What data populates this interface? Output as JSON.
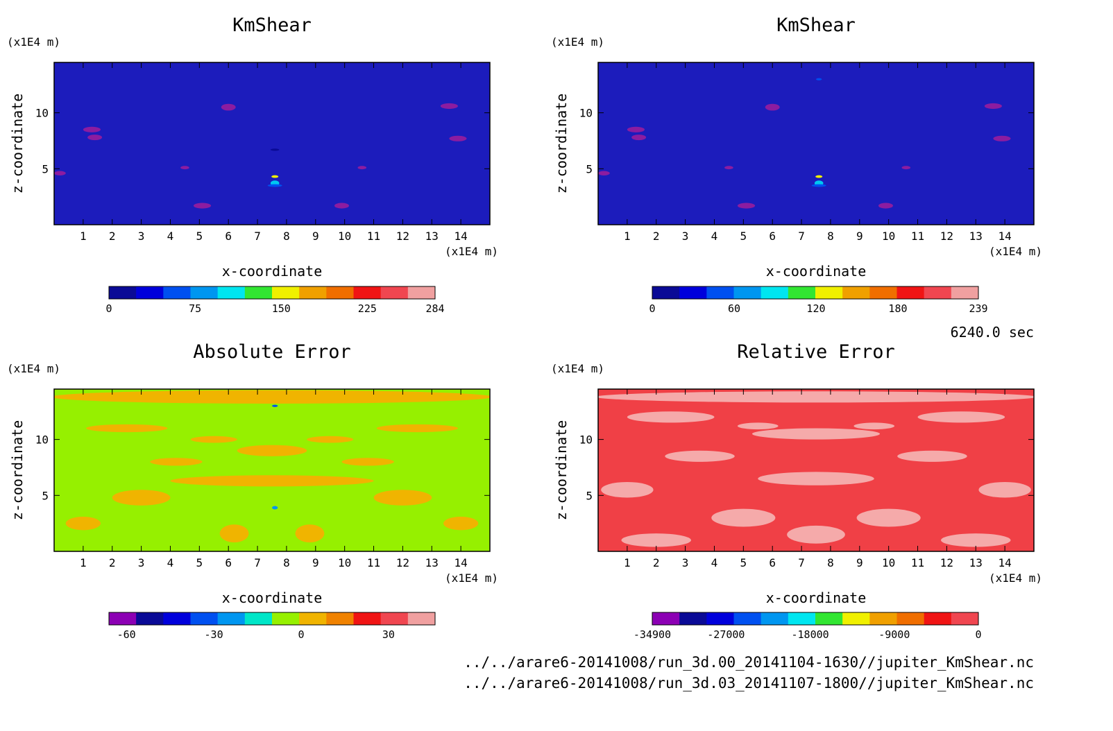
{
  "time_label": "6240.0 sec",
  "footer": {
    "line1": "../../arare6-20141008/run_3d.00_20141104-1630//jupiter_KmShear.nc",
    "line2": "../../arare6-20141008/run_3d.03_20141107-1800//jupiter_KmShear.nc"
  },
  "chart_data": [
    {
      "type": "heatmap",
      "title": "KmShear",
      "xlabel": "x-coordinate",
      "ylabel": "z-coordinate",
      "x_unit": "(x1E4 m)",
      "y_unit": "(x1E4 m)",
      "xlim": [
        0,
        15
      ],
      "ylim": [
        0,
        14.5
      ],
      "xticks": [
        1,
        2,
        3,
        4,
        5,
        6,
        7,
        8,
        9,
        10,
        11,
        12,
        13,
        14
      ],
      "yticks": [
        5,
        10
      ],
      "background_color": "#1c1cbc",
      "colorbar": {
        "range": [
          0,
          284
        ],
        "labels": [
          {
            "value": 0,
            "text": "0"
          },
          {
            "value": 75,
            "text": "75"
          },
          {
            "value": 150,
            "text": "150"
          },
          {
            "value": 225,
            "text": "225"
          },
          {
            "value": 284,
            "text": "284"
          }
        ],
        "colors": [
          "#0a0a96",
          "#0000dc",
          "#0050f0",
          "#0096f0",
          "#00e6f0",
          "#32e632",
          "#f0f000",
          "#f0a000",
          "#f06e00",
          "#f01414",
          "#f04650",
          "#f0a0a0"
        ]
      },
      "blobs": [
        {
          "x": 6.0,
          "z": 10.5,
          "rx": 0.25,
          "rz": 0.3,
          "c": "#8c1ca0"
        },
        {
          "x": 1.3,
          "z": 8.5,
          "rx": 0.3,
          "rz": 0.25,
          "c": "#8c1ca0"
        },
        {
          "x": 1.4,
          "z": 7.8,
          "rx": 0.25,
          "rz": 0.25,
          "c": "#8c1ca0"
        },
        {
          "x": 0.2,
          "z": 4.6,
          "rx": 0.2,
          "rz": 0.2,
          "c": "#8c1ca0"
        },
        {
          "x": 5.1,
          "z": 1.7,
          "rx": 0.3,
          "rz": 0.25,
          "c": "#8c1ca0"
        },
        {
          "x": 9.9,
          "z": 1.7,
          "rx": 0.25,
          "rz": 0.25,
          "c": "#8c1ca0"
        },
        {
          "x": 13.6,
          "z": 10.6,
          "rx": 0.3,
          "rz": 0.25,
          "c": "#8c1ca0"
        },
        {
          "x": 13.9,
          "z": 7.7,
          "rx": 0.3,
          "rz": 0.25,
          "c": "#8c1ca0"
        },
        {
          "x": 4.5,
          "z": 5.1,
          "rx": 0.15,
          "rz": 0.15,
          "c": "#8c1ca0"
        },
        {
          "x": 10.6,
          "z": 5.1,
          "rx": 0.15,
          "rz": 0.15,
          "c": "#8c1ca0"
        },
        {
          "x": 7.6,
          "z": 3.7,
          "rx": 0.15,
          "rz": 0.25,
          "c": "#00c8f0"
        },
        {
          "x": 7.6,
          "z": 4.3,
          "rx": 0.12,
          "rz": 0.12,
          "c": "#f0f000"
        },
        {
          "x": 7.6,
          "z": 3.5,
          "rx": 0.25,
          "rz": 0.12,
          "c": "#0050f0"
        },
        {
          "x": 7.6,
          "z": 6.7,
          "rx": 0.15,
          "rz": 0.1,
          "c": "#0a0a96"
        }
      ]
    },
    {
      "type": "heatmap",
      "title": "KmShear",
      "xlabel": "x-coordinate",
      "ylabel": "z-coordinate",
      "x_unit": "(x1E4 m)",
      "y_unit": "(x1E4 m)",
      "xlim": [
        0,
        15
      ],
      "ylim": [
        0,
        14.5
      ],
      "xticks": [
        1,
        2,
        3,
        4,
        5,
        6,
        7,
        8,
        9,
        10,
        11,
        12,
        13,
        14
      ],
      "yticks": [
        5,
        10
      ],
      "background_color": "#1c1cbc",
      "colorbar": {
        "range": [
          0,
          239
        ],
        "labels": [
          {
            "value": 0,
            "text": "0"
          },
          {
            "value": 60,
            "text": "60"
          },
          {
            "value": 120,
            "text": "120"
          },
          {
            "value": 180,
            "text": "180"
          },
          {
            "value": 239,
            "text": "239"
          }
        ],
        "colors": [
          "#0a0a96",
          "#0000dc",
          "#0050f0",
          "#0096f0",
          "#00e6f0",
          "#32e632",
          "#f0f000",
          "#f0a000",
          "#f06e00",
          "#f01414",
          "#f04650",
          "#f0a0a0"
        ]
      },
      "blobs": [
        {
          "x": 6.0,
          "z": 10.5,
          "rx": 0.25,
          "rz": 0.3,
          "c": "#8c1ca0"
        },
        {
          "x": 1.3,
          "z": 8.5,
          "rx": 0.3,
          "rz": 0.25,
          "c": "#8c1ca0"
        },
        {
          "x": 1.4,
          "z": 7.8,
          "rx": 0.25,
          "rz": 0.25,
          "c": "#8c1ca0"
        },
        {
          "x": 0.2,
          "z": 4.6,
          "rx": 0.2,
          "rz": 0.2,
          "c": "#8c1ca0"
        },
        {
          "x": 5.1,
          "z": 1.7,
          "rx": 0.3,
          "rz": 0.25,
          "c": "#8c1ca0"
        },
        {
          "x": 9.9,
          "z": 1.7,
          "rx": 0.25,
          "rz": 0.25,
          "c": "#8c1ca0"
        },
        {
          "x": 13.6,
          "z": 10.6,
          "rx": 0.3,
          "rz": 0.25,
          "c": "#8c1ca0"
        },
        {
          "x": 13.9,
          "z": 7.7,
          "rx": 0.3,
          "rz": 0.25,
          "c": "#8c1ca0"
        },
        {
          "x": 4.5,
          "z": 5.1,
          "rx": 0.15,
          "rz": 0.15,
          "c": "#8c1ca0"
        },
        {
          "x": 10.6,
          "z": 5.1,
          "rx": 0.15,
          "rz": 0.15,
          "c": "#8c1ca0"
        },
        {
          "x": 7.6,
          "z": 3.7,
          "rx": 0.15,
          "rz": 0.25,
          "c": "#00c8f0"
        },
        {
          "x": 7.6,
          "z": 4.3,
          "rx": 0.12,
          "rz": 0.12,
          "c": "#f0f000"
        },
        {
          "x": 7.6,
          "z": 3.5,
          "rx": 0.25,
          "rz": 0.12,
          "c": "#0050f0"
        },
        {
          "x": 7.6,
          "z": 13.0,
          "rx": 0.1,
          "rz": 0.1,
          "c": "#0050f0"
        }
      ]
    },
    {
      "type": "heatmap",
      "title": "Absolute Error",
      "xlabel": "x-coordinate",
      "ylabel": "z-coordinate",
      "x_unit": "(x1E4 m)",
      "y_unit": "(x1E4 m)",
      "xlim": [
        0,
        15
      ],
      "ylim": [
        0,
        14.5
      ],
      "xticks": [
        1,
        2,
        3,
        4,
        5,
        6,
        7,
        8,
        9,
        10,
        11,
        12,
        13,
        14
      ],
      "yticks": [
        5,
        10
      ],
      "background_color": "#96f000",
      "colorbar": {
        "range": [
          -66,
          46
        ],
        "labels": [
          {
            "value": -60,
            "text": "-60"
          },
          {
            "value": -30,
            "text": "-30"
          },
          {
            "value": 0,
            "text": "0"
          },
          {
            "value": 30,
            "text": "30"
          }
        ],
        "colors": [
          "#8c00b4",
          "#0a0a96",
          "#0000dc",
          "#0050f0",
          "#0096f0",
          "#00e6c8",
          "#96f000",
          "#f0b400",
          "#f08200",
          "#f01414",
          "#f04650",
          "#f0a0a0"
        ]
      },
      "blobs": [
        {
          "x": 7.5,
          "z": 13.8,
          "rx": 7.6,
          "rz": 0.6,
          "c": "#f0b400"
        },
        {
          "x": 2.5,
          "z": 11.0,
          "rx": 1.4,
          "rz": 0.35,
          "c": "#f0b400"
        },
        {
          "x": 12.5,
          "z": 11.0,
          "rx": 1.4,
          "rz": 0.35,
          "c": "#f0b400"
        },
        {
          "x": 7.5,
          "z": 9.0,
          "rx": 1.2,
          "rz": 0.5,
          "c": "#f0b400"
        },
        {
          "x": 4.2,
          "z": 8.0,
          "rx": 0.9,
          "rz": 0.35,
          "c": "#f0b400"
        },
        {
          "x": 10.8,
          "z": 8.0,
          "rx": 0.9,
          "rz": 0.35,
          "c": "#f0b400"
        },
        {
          "x": 7.5,
          "z": 6.3,
          "rx": 3.5,
          "rz": 0.5,
          "c": "#f0b400"
        },
        {
          "x": 3.0,
          "z": 4.8,
          "rx": 1.0,
          "rz": 0.7,
          "c": "#f0b400"
        },
        {
          "x": 12.0,
          "z": 4.8,
          "rx": 1.0,
          "rz": 0.7,
          "c": "#f0b400"
        },
        {
          "x": 6.2,
          "z": 1.6,
          "rx": 0.5,
          "rz": 0.8,
          "c": "#f0b400"
        },
        {
          "x": 8.8,
          "z": 1.6,
          "rx": 0.5,
          "rz": 0.8,
          "c": "#f0b400"
        },
        {
          "x": 1.0,
          "z": 2.5,
          "rx": 0.6,
          "rz": 0.6,
          "c": "#f0b400"
        },
        {
          "x": 14.0,
          "z": 2.5,
          "rx": 0.6,
          "rz": 0.6,
          "c": "#f0b400"
        },
        {
          "x": 5.5,
          "z": 10.0,
          "rx": 0.8,
          "rz": 0.3,
          "c": "#f0b400"
        },
        {
          "x": 9.5,
          "z": 10.0,
          "rx": 0.8,
          "rz": 0.3,
          "c": "#f0b400"
        },
        {
          "x": 7.6,
          "z": 13.0,
          "rx": 0.1,
          "rz": 0.1,
          "c": "#0050f0"
        },
        {
          "x": 7.6,
          "z": 3.9,
          "rx": 0.1,
          "rz": 0.15,
          "c": "#0096f0"
        }
      ]
    },
    {
      "type": "heatmap",
      "title": "Relative Error",
      "xlabel": "x-coordinate",
      "ylabel": "z-coordinate",
      "x_unit": "(x1E4 m)",
      "y_unit": "(x1E4 m)",
      "xlim": [
        0,
        15
      ],
      "ylim": [
        0,
        14.5
      ],
      "xticks": [
        1,
        2,
        3,
        4,
        5,
        6,
        7,
        8,
        9,
        10,
        11,
        12,
        13,
        14
      ],
      "yticks": [
        5,
        10
      ],
      "background_color": "#f04046",
      "colorbar": {
        "range": [
          -34900,
          0
        ],
        "labels": [
          {
            "value": -34900,
            "text": "-34900"
          },
          {
            "value": -27000,
            "text": "-27000"
          },
          {
            "value": -18000,
            "text": "-18000"
          },
          {
            "value": -9000,
            "text": "-9000"
          },
          {
            "value": 0,
            "text": "0"
          }
        ],
        "colors": [
          "#8c00b4",
          "#0a0a96",
          "#0000dc",
          "#0050f0",
          "#0096f0",
          "#00e6f0",
          "#32e632",
          "#f0f000",
          "#f0a000",
          "#f06e00",
          "#f01414",
          "#f04650"
        ]
      },
      "blobs": [
        {
          "x": 7.5,
          "z": 13.8,
          "rx": 7.6,
          "rz": 0.5,
          "c": "#f5aaaa"
        },
        {
          "x": 2.5,
          "z": 12.0,
          "rx": 1.5,
          "rz": 0.5,
          "c": "#f5aaaa"
        },
        {
          "x": 12.5,
          "z": 12.0,
          "rx": 1.5,
          "rz": 0.5,
          "c": "#f5aaaa"
        },
        {
          "x": 7.5,
          "z": 10.5,
          "rx": 2.2,
          "rz": 0.5,
          "c": "#f5aaaa"
        },
        {
          "x": 3.5,
          "z": 8.5,
          "rx": 1.2,
          "rz": 0.5,
          "c": "#f5aaaa"
        },
        {
          "x": 11.5,
          "z": 8.5,
          "rx": 1.2,
          "rz": 0.5,
          "c": "#f5aaaa"
        },
        {
          "x": 7.5,
          "z": 6.5,
          "rx": 2.0,
          "rz": 0.6,
          "c": "#f5aaaa"
        },
        {
          "x": 1.0,
          "z": 5.5,
          "rx": 0.9,
          "rz": 0.7,
          "c": "#f5aaaa"
        },
        {
          "x": 14.0,
          "z": 5.5,
          "rx": 0.9,
          "rz": 0.7,
          "c": "#f5aaaa"
        },
        {
          "x": 5.0,
          "z": 3.0,
          "rx": 1.1,
          "rz": 0.8,
          "c": "#f5aaaa"
        },
        {
          "x": 10.0,
          "z": 3.0,
          "rx": 1.1,
          "rz": 0.8,
          "c": "#f5aaaa"
        },
        {
          "x": 7.5,
          "z": 1.5,
          "rx": 1.0,
          "rz": 0.8,
          "c": "#f5aaaa"
        },
        {
          "x": 2.0,
          "z": 1.0,
          "rx": 1.2,
          "rz": 0.6,
          "c": "#f5aaaa"
        },
        {
          "x": 13.0,
          "z": 1.0,
          "rx": 1.2,
          "rz": 0.6,
          "c": "#f5aaaa"
        },
        {
          "x": 5.5,
          "z": 11.2,
          "rx": 0.7,
          "rz": 0.3,
          "c": "#f5aaaa"
        },
        {
          "x": 9.5,
          "z": 11.2,
          "rx": 0.7,
          "rz": 0.3,
          "c": "#f5aaaa"
        }
      ]
    }
  ]
}
